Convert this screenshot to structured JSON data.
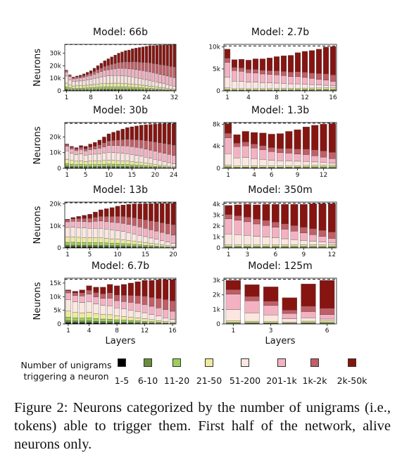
{
  "colors": [
    "#000000",
    "#6b8e3a",
    "#9ccf5a",
    "#eeea9c",
    "#fbe6e0",
    "#f3b2c2",
    "#c15e66",
    "#861512"
  ],
  "legend": {
    "title_line1": "Number of unigrams",
    "title_line2": "triggering a neuron",
    "items": [
      "1-5",
      "6-10",
      "11-20",
      "21-50",
      "51-200",
      "201-1k",
      "1k-2k",
      "2k-50k"
    ]
  },
  "caption": "Figure 2: Neurons categorized by the number of unigrams (i.e., tokens) able to trigger them. First half of the network, alive neurons only.",
  "chart_data": [
    {
      "type": "bar",
      "stacked": true,
      "title": "Model: 66b",
      "xlabel": "",
      "ylabel": "Neurons",
      "ylim": [
        0,
        37000
      ],
      "yticks": [
        0,
        10000,
        20000,
        30000
      ],
      "ytick_labels": [
        "0",
        "10k",
        "20k",
        "30k"
      ],
      "xticks": [
        1,
        8,
        16,
        24,
        32
      ],
      "dashed_line": 36864,
      "layers": [
        1,
        2,
        3,
        4,
        5,
        6,
        7,
        8,
        9,
        10,
        11,
        12,
        13,
        14,
        15,
        16,
        17,
        18,
        19,
        20,
        21,
        22,
        23,
        24,
        25,
        26,
        27,
        28,
        29,
        30,
        31,
        32
      ],
      "totals": [
        16500,
        12800,
        11000,
        11800,
        12500,
        13500,
        14800,
        16000,
        18000,
        20000,
        22000,
        24000,
        25500,
        27000,
        28500,
        30000,
        31000,
        32000,
        32500,
        33500,
        34000,
        34500,
        35000,
        35500,
        36000,
        36000,
        36200,
        36300,
        36400,
        36500,
        36500,
        36600
      ]
    },
    {
      "type": "bar",
      "stacked": true,
      "title": "Model: 2.7b",
      "xlabel": "",
      "ylabel": "",
      "ylim": [
        0,
        10600
      ],
      "yticks": [
        0,
        5000,
        10000
      ],
      "ytick_labels": [
        "0",
        "5k",
        "10k"
      ],
      "xticks": [
        1,
        4,
        8,
        12,
        16
      ],
      "dashed_line": 10240,
      "layers": [
        1,
        2,
        3,
        4,
        5,
        6,
        7,
        8,
        9,
        10,
        11,
        12,
        13,
        14,
        15,
        16
      ],
      "totals": [
        9500,
        7100,
        7200,
        7000,
        7300,
        7300,
        7500,
        7800,
        8000,
        8100,
        8700,
        9000,
        9200,
        9500,
        10000,
        10100
      ]
    },
    {
      "type": "bar",
      "stacked": true,
      "title": "Model: 30b",
      "xlabel": "",
      "ylabel": "Neurons",
      "ylim": [
        0,
        29200
      ],
      "yticks": [
        0,
        10000,
        20000
      ],
      "ytick_labels": [
        "0",
        "10k",
        "20k"
      ],
      "xticks": [
        1,
        5,
        10,
        15,
        20,
        24
      ],
      "dashed_line": 28672,
      "layers": [
        1,
        2,
        3,
        4,
        5,
        6,
        7,
        8,
        9,
        10,
        11,
        12,
        13,
        14,
        15,
        16,
        17,
        18,
        19,
        20,
        21,
        22,
        23,
        24
      ],
      "totals": [
        15500,
        14000,
        13200,
        14500,
        14000,
        15500,
        16500,
        18000,
        20000,
        22000,
        23000,
        24000,
        25000,
        26000,
        26500,
        27000,
        27500,
        27800,
        28000,
        28200,
        28300,
        28400,
        28500,
        28500
      ]
    },
    {
      "type": "bar",
      "stacked": true,
      "title": "Model: 1.3b",
      "xlabel": "",
      "ylabel": "",
      "ylim": [
        0,
        8300
      ],
      "yticks": [
        0,
        4000,
        8000
      ],
      "ytick_labels": [
        "0",
        "4k",
        "8k"
      ],
      "xticks": [
        1,
        4,
        6,
        9,
        12
      ],
      "dashed_line": 8192,
      "layers": [
        1,
        2,
        3,
        4,
        5,
        6,
        7,
        8,
        9,
        10,
        11,
        12,
        13
      ],
      "totals": [
        8100,
        6100,
        6700,
        6500,
        6400,
        6200,
        6300,
        6700,
        7000,
        7500,
        7800,
        8000,
        8100
      ]
    },
    {
      "type": "bar",
      "stacked": true,
      "title": "Model: 13b",
      "xlabel": "",
      "ylabel": "Neurons",
      "ylim": [
        0,
        20800
      ],
      "yticks": [
        0,
        10000,
        20000
      ],
      "ytick_labels": [
        "0",
        "10k",
        "20k"
      ],
      "xticks": [
        1,
        5,
        10,
        15,
        20
      ],
      "dashed_line": 20480,
      "layers": [
        1,
        2,
        3,
        4,
        5,
        6,
        7,
        8,
        9,
        10,
        11,
        12,
        13,
        14,
        15,
        16,
        17,
        18,
        19,
        20
      ],
      "totals": [
        13000,
        13800,
        14300,
        14800,
        15300,
        16300,
        17300,
        17800,
        18300,
        19000,
        19500,
        19800,
        20000,
        20000,
        20100,
        20100,
        20200,
        20200,
        20200,
        20300
      ]
    },
    {
      "type": "bar",
      "stacked": true,
      "title": "Model: 350m",
      "xlabel": "",
      "ylabel": "",
      "ylim": [
        0,
        4200
      ],
      "yticks": [
        0,
        1000,
        2000,
        3000,
        4000
      ],
      "ytick_labels": [
        "0",
        "1k",
        "2k",
        "3k",
        "4k"
      ],
      "xticks": [
        1,
        3,
        6,
        9,
        12
      ],
      "dashed_line": 4096,
      "layers": [
        1,
        2,
        3,
        4,
        5,
        6,
        7,
        8,
        9,
        10,
        11,
        12
      ],
      "totals": [
        3900,
        3950,
        4000,
        3950,
        4000,
        4000,
        4000,
        4000,
        4000,
        4050,
        4050,
        4050
      ]
    },
    {
      "type": "bar",
      "stacked": true,
      "title": "Model: 6.7b",
      "xlabel": "Layers",
      "ylabel": "Neurons",
      "ylim": [
        0,
        16800
      ],
      "yticks": [
        0,
        5000,
        10000,
        15000
      ],
      "ytick_labels": [
        "0",
        "5k",
        "10k",
        "15k"
      ],
      "xticks": [
        1,
        4,
        8,
        12,
        16
      ],
      "dashed_line": 16384,
      "layers": [
        1,
        2,
        3,
        4,
        5,
        6,
        7,
        8,
        9,
        10,
        11,
        12,
        13,
        14,
        15,
        16
      ],
      "totals": [
        12500,
        12000,
        12500,
        14000,
        13500,
        13500,
        14500,
        14000,
        14500,
        15000,
        15500,
        16000,
        16000,
        16200,
        16300,
        16300
      ]
    },
    {
      "type": "bar",
      "stacked": true,
      "title": "Model: 125m",
      "xlabel": "Layers",
      "ylabel": "",
      "ylim": [
        0,
        3150
      ],
      "yticks": [
        0,
        1000,
        2000,
        3000
      ],
      "ytick_labels": [
        "0",
        "1k",
        "2k",
        "3k"
      ],
      "xticks": [
        1,
        3,
        6
      ],
      "dashed_line": 3072,
      "layers": [
        1,
        2,
        3,
        4,
        5,
        6
      ],
      "totals": [
        3000,
        2700,
        2550,
        1800,
        2750,
        3000
      ]
    }
  ]
}
